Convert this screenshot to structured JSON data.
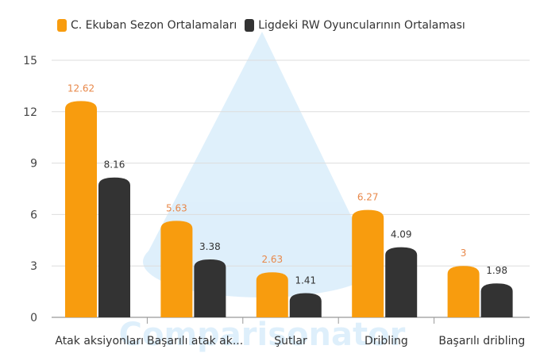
{
  "chart_data": {
    "type": "bar",
    "categories": [
      "Atak aksiyonları",
      "Başarılı atak ak...",
      "Şutlar",
      "Dribling",
      "Başarılı dribling"
    ],
    "series": [
      {
        "name": "C. Ekuban Sezon Ortalamaları",
        "values": [
          12.62,
          5.63,
          2.63,
          6.27,
          3
        ],
        "labels": [
          "12.62",
          "5.63",
          "2.63",
          "6.27",
          "3"
        ],
        "color": "#f89c0e",
        "label_color": "#e8884a"
      },
      {
        "name": "Ligdeki RW Oyuncularının Ortalaması",
        "values": [
          8.16,
          3.38,
          1.41,
          4.09,
          1.98
        ],
        "labels": [
          "8.16",
          "3.38",
          "1.41",
          "4.09",
          "1.98"
        ],
        "color": "#333333",
        "label_color": "#333333"
      }
    ],
    "yticks": [
      "0",
      "3",
      "6",
      "9",
      "12",
      "15"
    ],
    "ylim": [
      0,
      15
    ],
    "grid": true,
    "legend": "top-left"
  },
  "watermark": "Comparisonator"
}
